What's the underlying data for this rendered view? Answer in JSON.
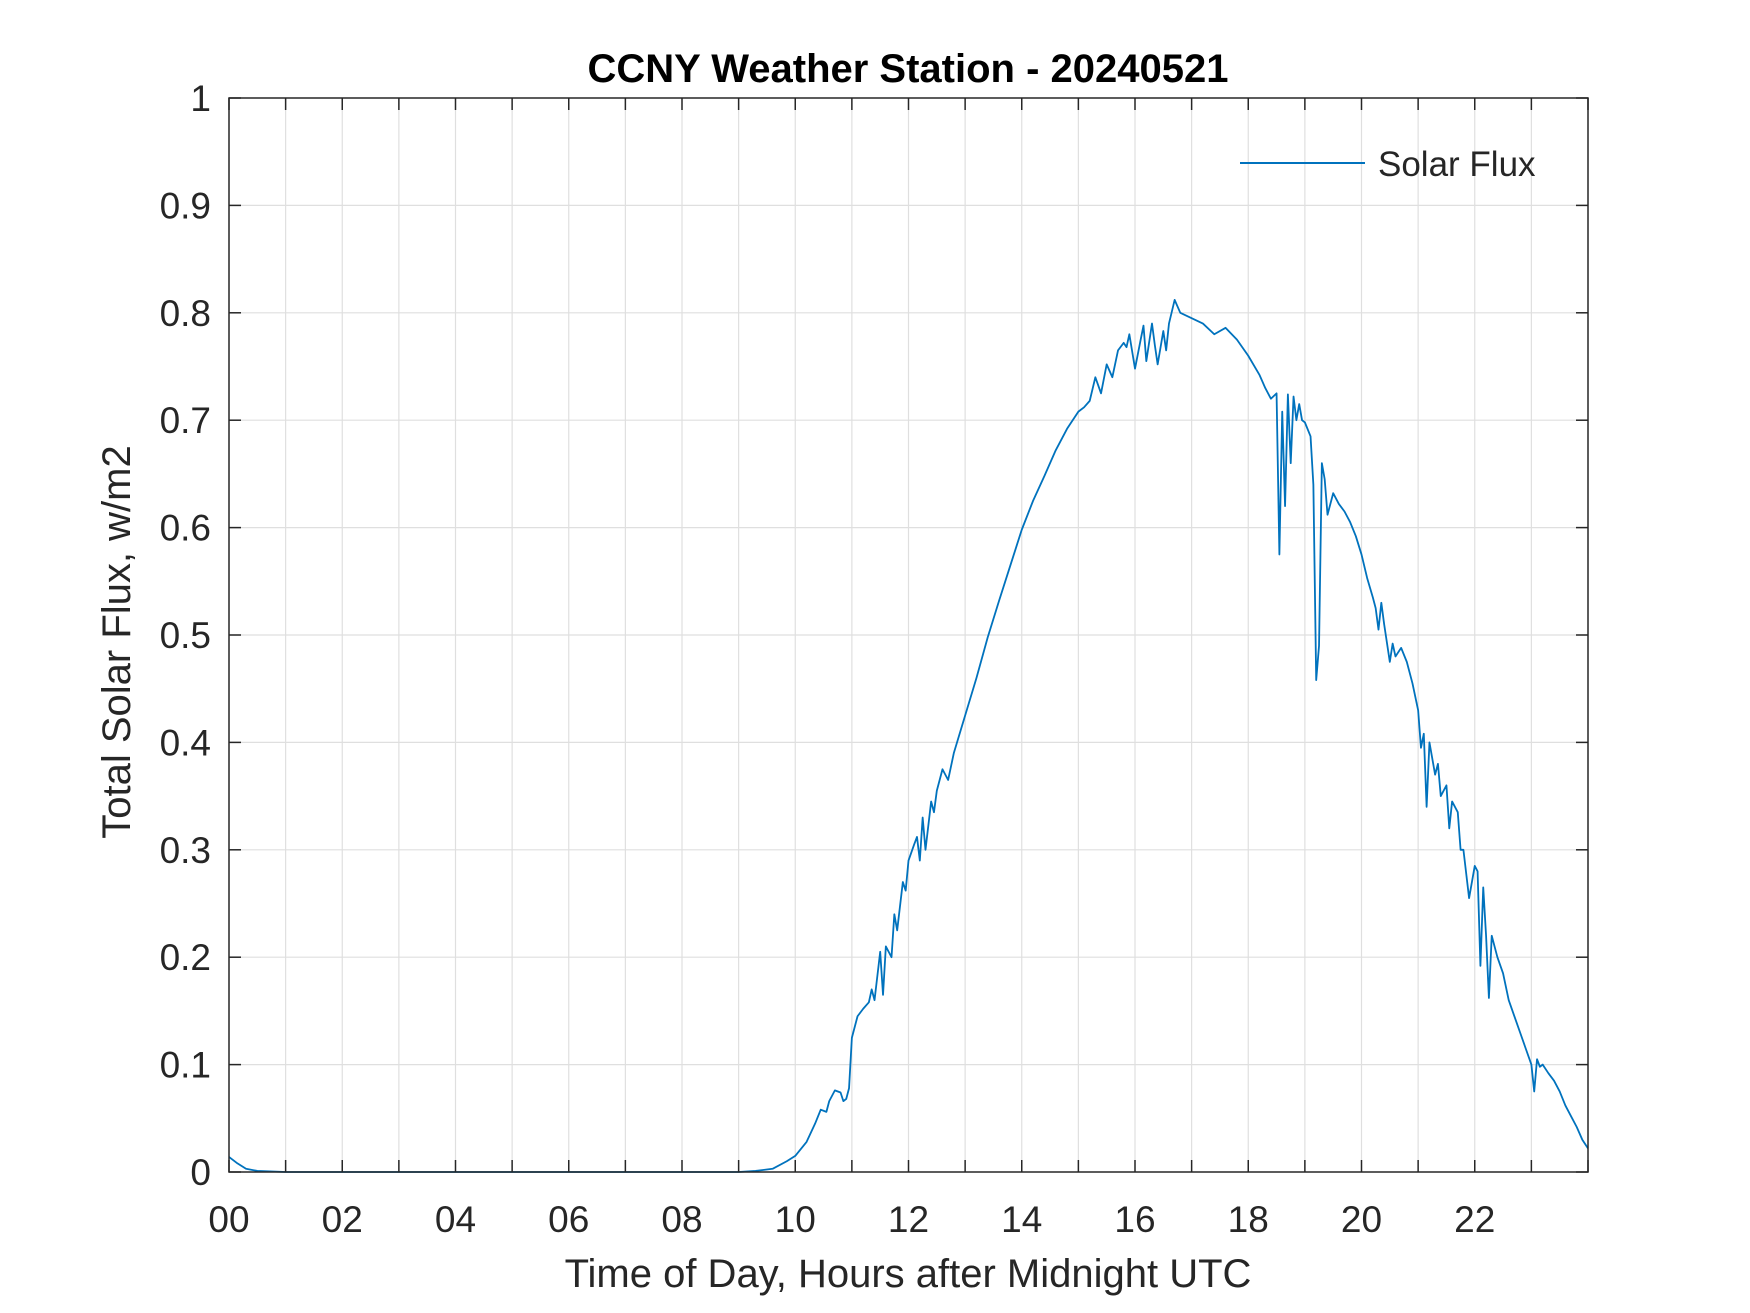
{
  "chart_data": {
    "type": "line",
    "title": "CCNY Weather Station - 20240521",
    "xlabel": "Time of Day, Hours after Midnight UTC",
    "ylabel": "Total Solar Flux, w/m2",
    "xlim": [
      0,
      24
    ],
    "ylim": [
      0,
      1
    ],
    "xticks": [
      0,
      2,
      4,
      6,
      8,
      10,
      12,
      14,
      16,
      18,
      20,
      22
    ],
    "xtick_labels": [
      "00",
      "02",
      "04",
      "06",
      "08",
      "10",
      "12",
      "14",
      "16",
      "18",
      "20",
      "22"
    ],
    "yticks": [
      0,
      0.1,
      0.2,
      0.3,
      0.4,
      0.5,
      0.6,
      0.7,
      0.8,
      0.9,
      1
    ],
    "ytick_labels": [
      "0",
      "0.1",
      "0.2",
      "0.3",
      "0.4",
      "0.5",
      "0.6",
      "0.7",
      "0.8",
      "0.9",
      "1"
    ],
    "grid": true,
    "legend": {
      "position": "top-right",
      "entries": [
        "Solar Flux"
      ]
    },
    "series_color": "#0072BD",
    "series": [
      {
        "name": "Solar Flux",
        "x": [
          0,
          0.15,
          0.3,
          0.5,
          1,
          2,
          3,
          4,
          5,
          6,
          7,
          8,
          9,
          9.3,
          9.6,
          9.85,
          10.0,
          10.2,
          10.35,
          10.45,
          10.55,
          10.6,
          10.7,
          10.8,
          10.85,
          10.9,
          10.95,
          11.0,
          11.1,
          11.2,
          11.3,
          11.35,
          11.4,
          11.5,
          11.55,
          11.6,
          11.7,
          11.75,
          11.8,
          11.9,
          11.95,
          12.0,
          12.1,
          12.15,
          12.2,
          12.25,
          12.3,
          12.4,
          12.45,
          12.5,
          12.6,
          12.7,
          12.8,
          13.0,
          13.2,
          13.4,
          13.6,
          13.8,
          14.0,
          14.2,
          14.4,
          14.6,
          14.8,
          15.0,
          15.1,
          15.2,
          15.3,
          15.4,
          15.5,
          15.6,
          15.7,
          15.8,
          15.85,
          15.9,
          16.0,
          16.1,
          16.15,
          16.2,
          16.3,
          16.35,
          16.4,
          16.5,
          16.55,
          16.6,
          16.7,
          16.8,
          17.0,
          17.2,
          17.4,
          17.6,
          17.8,
          18.0,
          18.2,
          18.3,
          18.4,
          18.5,
          18.55,
          18.6,
          18.65,
          18.7,
          18.75,
          18.8,
          18.85,
          18.9,
          18.95,
          19.0,
          19.1,
          19.15,
          19.2,
          19.25,
          19.3,
          19.35,
          19.4,
          19.5,
          19.6,
          19.7,
          19.8,
          19.9,
          20.0,
          20.1,
          20.2,
          20.25,
          20.3,
          20.35,
          20.4,
          20.5,
          20.55,
          20.6,
          20.7,
          20.8,
          20.9,
          21.0,
          21.05,
          21.1,
          21.15,
          21.2,
          21.3,
          21.35,
          21.4,
          21.5,
          21.55,
          21.6,
          21.7,
          21.75,
          21.8,
          21.9,
          22.0,
          22.05,
          22.1,
          22.15,
          22.2,
          22.25,
          22.3,
          22.4,
          22.5,
          22.6,
          22.7,
          22.8,
          22.9,
          23.0,
          23.05,
          23.1,
          23.15,
          23.2,
          23.3,
          23.4,
          23.5,
          23.6,
          23.7,
          23.8,
          23.9,
          24.0
        ],
        "values": [
          0.014,
          0.008,
          0.003,
          0.001,
          0,
          0,
          0,
          0,
          0,
          0,
          0,
          0,
          0,
          0.001,
          0.003,
          0.01,
          0.015,
          0.028,
          0.045,
          0.058,
          0.056,
          0.066,
          0.076,
          0.074,
          0.066,
          0.068,
          0.078,
          0.125,
          0.145,
          0.152,
          0.158,
          0.17,
          0.16,
          0.205,
          0.165,
          0.21,
          0.2,
          0.24,
          0.225,
          0.27,
          0.262,
          0.29,
          0.305,
          0.312,
          0.29,
          0.33,
          0.3,
          0.345,
          0.335,
          0.355,
          0.375,
          0.365,
          0.39,
          0.425,
          0.46,
          0.498,
          0.532,
          0.565,
          0.598,
          0.625,
          0.648,
          0.672,
          0.692,
          0.708,
          0.712,
          0.718,
          0.74,
          0.725,
          0.752,
          0.74,
          0.765,
          0.772,
          0.768,
          0.78,
          0.748,
          0.775,
          0.788,
          0.755,
          0.79,
          0.77,
          0.752,
          0.783,
          0.765,
          0.79,
          0.812,
          0.8,
          0.795,
          0.79,
          0.78,
          0.786,
          0.775,
          0.76,
          0.742,
          0.73,
          0.72,
          0.725,
          0.575,
          0.708,
          0.62,
          0.724,
          0.66,
          0.722,
          0.7,
          0.715,
          0.7,
          0.698,
          0.685,
          0.64,
          0.458,
          0.49,
          0.66,
          0.645,
          0.612,
          0.632,
          0.622,
          0.615,
          0.605,
          0.592,
          0.575,
          0.553,
          0.535,
          0.525,
          0.505,
          0.53,
          0.51,
          0.475,
          0.492,
          0.48,
          0.488,
          0.475,
          0.455,
          0.43,
          0.395,
          0.408,
          0.34,
          0.4,
          0.37,
          0.38,
          0.35,
          0.36,
          0.32,
          0.345,
          0.335,
          0.3,
          0.3,
          0.255,
          0.285,
          0.28,
          0.192,
          0.265,
          0.22,
          0.162,
          0.22,
          0.2,
          0.185,
          0.16,
          0.145,
          0.13,
          0.115,
          0.1,
          0.075,
          0.105,
          0.098,
          0.1,
          0.092,
          0.085,
          0.075,
          0.062,
          0.052,
          0.042,
          0.03,
          0.022
        ]
      }
    ]
  }
}
